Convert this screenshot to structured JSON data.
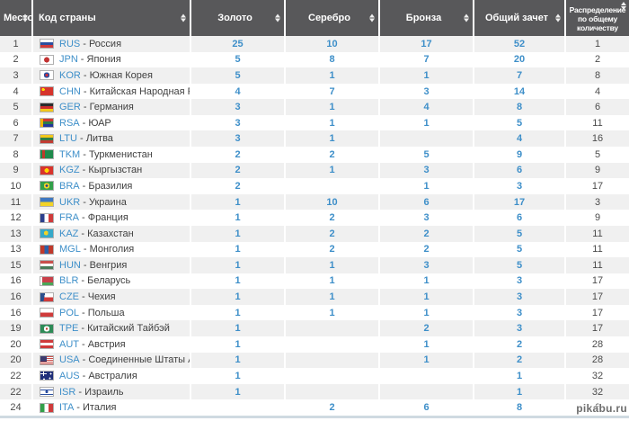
{
  "colors": {
    "header_bg": "#58585a",
    "link_blue": "#3e8fc9",
    "row_alt": "#f0f0f0",
    "text_dark": "#4b4b4b",
    "bottom_strip": "#cfdae1"
  },
  "watermark": "pikabu.ru",
  "table": {
    "columns": [
      {
        "key": "place",
        "label": "Место"
      },
      {
        "key": "country",
        "label": "Код страны"
      },
      {
        "key": "gold",
        "label": "Золото"
      },
      {
        "key": "silver",
        "label": "Серебро"
      },
      {
        "key": "bronze",
        "label": "Бронза"
      },
      {
        "key": "total",
        "label": "Общий зачет"
      },
      {
        "key": "distribution",
        "label": "Распределение по общему количеству"
      }
    ],
    "separator": " - ",
    "rows": [
      {
        "place": "1",
        "code": "RUS",
        "country": "Россия",
        "gold": "25",
        "silver": "10",
        "bronze": "17",
        "total": "52",
        "distribution": "1"
      },
      {
        "place": "2",
        "code": "JPN",
        "country": "Япония",
        "gold": "5",
        "silver": "8",
        "bronze": "7",
        "total": "20",
        "distribution": "2"
      },
      {
        "place": "3",
        "code": "KOR",
        "country": "Южная Корея",
        "gold": "5",
        "silver": "1",
        "bronze": "1",
        "total": "7",
        "distribution": "8"
      },
      {
        "place": "4",
        "code": "CHN",
        "country": "Китайская Народная Республика",
        "gold": "4",
        "silver": "7",
        "bronze": "3",
        "total": "14",
        "distribution": "4"
      },
      {
        "place": "5",
        "code": "GER",
        "country": "Германия",
        "gold": "3",
        "silver": "1",
        "bronze": "4",
        "total": "8",
        "distribution": "6"
      },
      {
        "place": "6",
        "code": "RSA",
        "country": "ЮАР",
        "gold": "3",
        "silver": "1",
        "bronze": "1",
        "total": "5",
        "distribution": "11"
      },
      {
        "place": "7",
        "code": "LTU",
        "country": "Литва",
        "gold": "3",
        "silver": "1",
        "bronze": "",
        "total": "4",
        "distribution": "16"
      },
      {
        "place": "8",
        "code": "TKM",
        "country": "Туркменистан",
        "gold": "2",
        "silver": "2",
        "bronze": "5",
        "total": "9",
        "distribution": "5"
      },
      {
        "place": "9",
        "code": "KGZ",
        "country": "Кыргызстан",
        "gold": "2",
        "silver": "1",
        "bronze": "3",
        "total": "6",
        "distribution": "9"
      },
      {
        "place": "10",
        "code": "BRA",
        "country": "Бразилия",
        "gold": "2",
        "silver": "",
        "bronze": "1",
        "total": "3",
        "distribution": "17"
      },
      {
        "place": "11",
        "code": "UKR",
        "country": "Украина",
        "gold": "1",
        "silver": "10",
        "bronze": "6",
        "total": "17",
        "distribution": "3"
      },
      {
        "place": "12",
        "code": "FRA",
        "country": "Франция",
        "gold": "1",
        "silver": "2",
        "bronze": "3",
        "total": "6",
        "distribution": "9"
      },
      {
        "place": "13",
        "code": "KAZ",
        "country": "Казахстан",
        "gold": "1",
        "silver": "2",
        "bronze": "2",
        "total": "5",
        "distribution": "11"
      },
      {
        "place": "13",
        "code": "MGL",
        "country": "Монголия",
        "gold": "1",
        "silver": "2",
        "bronze": "2",
        "total": "5",
        "distribution": "11"
      },
      {
        "place": "15",
        "code": "HUN",
        "country": "Венгрия",
        "gold": "1",
        "silver": "1",
        "bronze": "3",
        "total": "5",
        "distribution": "11"
      },
      {
        "place": "16",
        "code": "BLR",
        "country": "Беларусь",
        "gold": "1",
        "silver": "1",
        "bronze": "1",
        "total": "3",
        "distribution": "17"
      },
      {
        "place": "16",
        "code": "CZE",
        "country": "Чехия",
        "gold": "1",
        "silver": "1",
        "bronze": "1",
        "total": "3",
        "distribution": "17"
      },
      {
        "place": "16",
        "code": "POL",
        "country": "Польша",
        "gold": "1",
        "silver": "1",
        "bronze": "1",
        "total": "3",
        "distribution": "17"
      },
      {
        "place": "19",
        "code": "TPE",
        "country": "Китайский Тайбэй",
        "gold": "1",
        "silver": "",
        "bronze": "2",
        "total": "3",
        "distribution": "17"
      },
      {
        "place": "20",
        "code": "AUT",
        "country": "Австрия",
        "gold": "1",
        "silver": "",
        "bronze": "1",
        "total": "2",
        "distribution": "28"
      },
      {
        "place": "20",
        "code": "USA",
        "country": "Соединенные Штаты Америки",
        "gold": "1",
        "silver": "",
        "bronze": "1",
        "total": "2",
        "distribution": "28"
      },
      {
        "place": "22",
        "code": "AUS",
        "country": "Австралия",
        "gold": "1",
        "silver": "",
        "bronze": "",
        "total": "1",
        "distribution": "32"
      },
      {
        "place": "22",
        "code": "ISR",
        "country": "Израиль",
        "gold": "1",
        "silver": "",
        "bronze": "",
        "total": "1",
        "distribution": "32"
      },
      {
        "place": "24",
        "code": "ITA",
        "country": "Италия",
        "gold": "",
        "silver": "2",
        "bronze": "6",
        "total": "8",
        "distribution": "6"
      }
    ]
  }
}
